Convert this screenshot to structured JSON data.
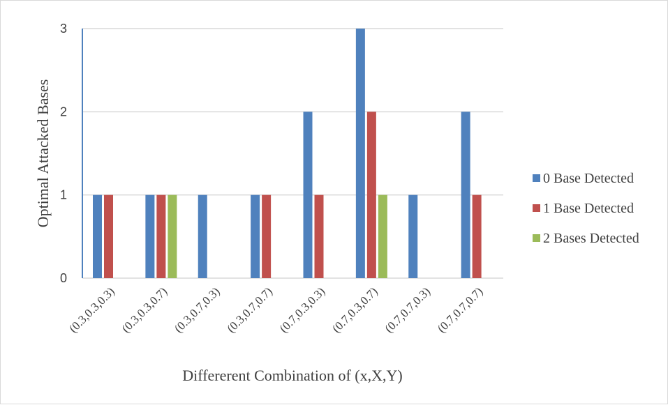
{
  "chart_data": {
    "type": "bar",
    "title": "",
    "xlabel": "Differerent Combination of (x,X,Y)",
    "ylabel": "Optimal Attacked Bases",
    "categories": [
      "(0.3,0.3,0.3)",
      "(0.3,0.3,0.7)",
      "(0.3,0.7,0.3)",
      "(0.3,0.7,0.7)",
      "(0.7,0.3,0.3)",
      "(0.7,0.3,0.7)",
      "(0.7,0.7,0.3)",
      "(0.7,0.7,0.7)"
    ],
    "series": [
      {
        "name": "0 Base Detected",
        "color": "#4f81bd",
        "values": [
          1,
          1,
          1,
          1,
          2,
          3,
          1,
          2
        ]
      },
      {
        "name": "1 Base Detected",
        "color": "#c0504d",
        "values": [
          1,
          1,
          0,
          1,
          1,
          2,
          0,
          1
        ]
      },
      {
        "name": "2 Bases Detected",
        "color": "#9bbb59",
        "values": [
          0,
          1,
          0,
          0,
          0,
          1,
          0,
          0
        ]
      }
    ],
    "ylim": [
      0,
      3
    ],
    "yticks": [
      0,
      1,
      2,
      3
    ],
    "grid": true,
    "legend_position": "right",
    "gridline_color": "#d9d9d9"
  }
}
